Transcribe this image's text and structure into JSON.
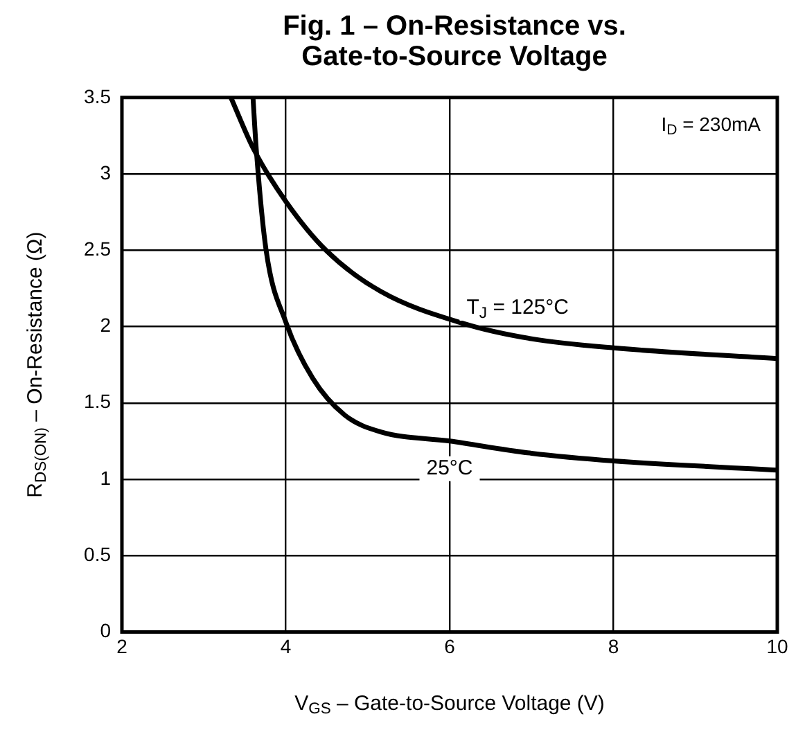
{
  "chart_data": {
    "type": "line",
    "title": "Fig. 1 – On-Resistance vs. Gate-to-Source Voltage",
    "xlabel": "V$_{GS}$ – Gate-to-Source Voltage (V)",
    "ylabel": "R$_{DS(ON)}$ – On-Resistance (Ω)",
    "xlim": [
      2,
      10
    ],
    "xticks": [
      2,
      4,
      6,
      8,
      10
    ],
    "ylim": [
      0,
      3.5
    ],
    "yticks": [
      0,
      0.5,
      1,
      1.5,
      2,
      2.5,
      3,
      3.5
    ],
    "grid": true,
    "legend": false,
    "marker": "none",
    "line_style": "solid",
    "series": [
      {
        "name": "T$_{J}$ = 125°C",
        "color": "#000000",
        "x": [
          3.33,
          3.61,
          4,
          4.49,
          5.16,
          6.17,
          7,
          8,
          10
        ],
        "values": [
          3.5,
          3.16,
          2.82,
          2.5,
          2.23,
          2.02,
          1.92,
          1.86,
          1.79
        ]
      },
      {
        "name": "25°C",
        "color": "#000000",
        "x": [
          3.6,
          3.64,
          3.76,
          4,
          4.33,
          4.72,
          5.16,
          6,
          7,
          8,
          10
        ],
        "values": [
          3.5,
          3.16,
          2.5,
          2.03,
          1.66,
          1.42,
          1.31,
          1.25,
          1.17,
          1.12,
          1.06
        ]
      }
    ],
    "annotations": [
      "I$_{D}$ = 230mA"
    ]
  }
}
